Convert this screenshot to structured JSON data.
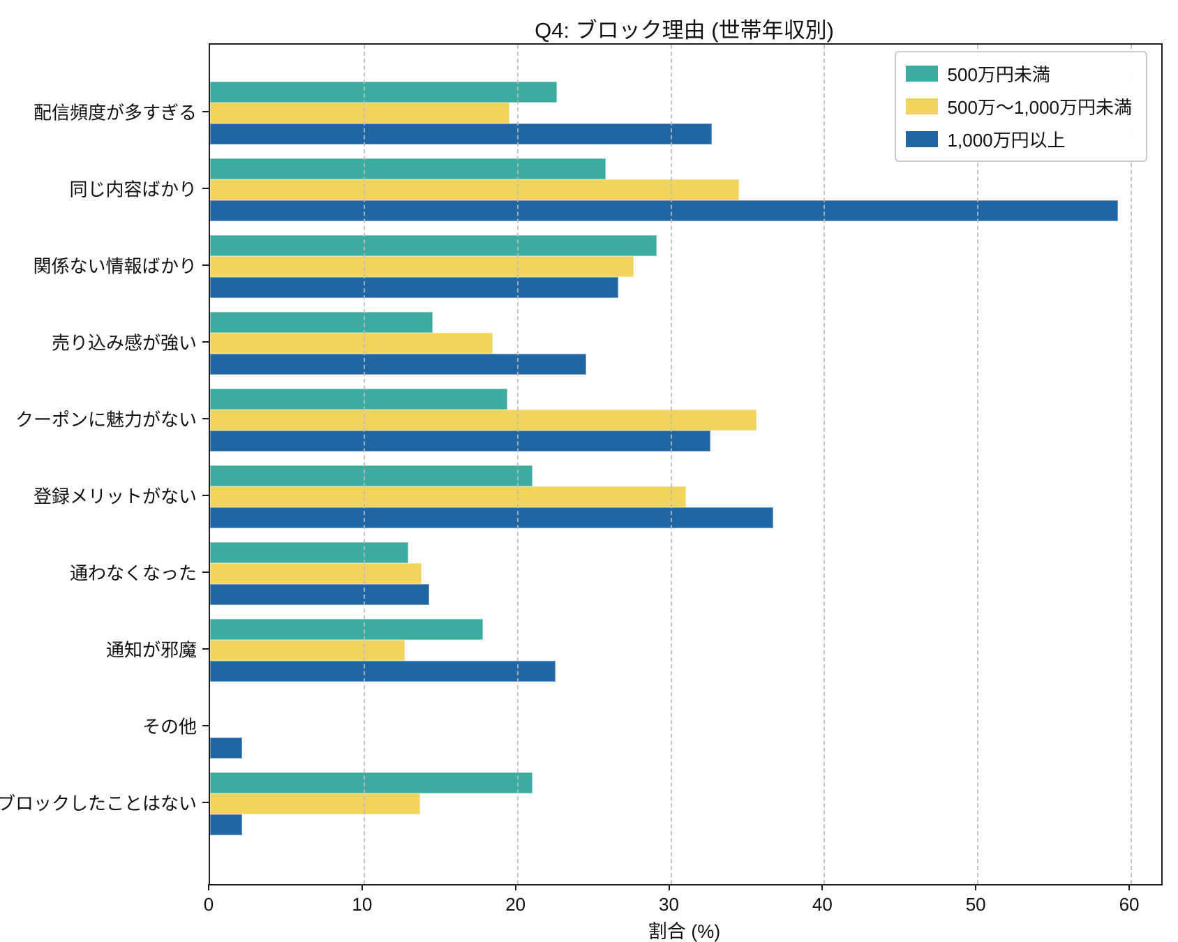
{
  "chart_data": {
    "type": "bar",
    "orientation": "horizontal",
    "title": "Q4: ブロック理由 (世帯年収別)",
    "xlabel": "割合 (%)",
    "xlim": [
      0,
      62
    ],
    "xticks": [
      0,
      10,
      20,
      30,
      40,
      50,
      60
    ],
    "grid": "vertical-dashed",
    "legend_position": "upper-right",
    "categories": [
      "配信頻度が多すぎる",
      "同じ内容ばかり",
      "関係ない情報ばかり",
      "売り込み感が強い",
      "クーポンに魅力がない",
      "登録メリットがない",
      "通わなくなった",
      "通知が邪魔",
      "その他",
      "ブロックしたことはない"
    ],
    "series": [
      {
        "name": "500万円未満",
        "color": "#3CACA0",
        "values": [
          22.6,
          25.8,
          29.1,
          14.5,
          19.4,
          21.0,
          12.9,
          17.8,
          0,
          21.0
        ]
      },
      {
        "name": "500万〜1,000万円未満",
        "color": "#F2D35C",
        "values": [
          19.5,
          34.5,
          27.6,
          18.4,
          35.6,
          31.0,
          13.8,
          12.7,
          0,
          13.7
        ]
      },
      {
        "name": "1,000万円以上",
        "color": "#2066A3",
        "values": [
          32.7,
          59.2,
          26.6,
          24.5,
          32.6,
          36.7,
          14.3,
          22.5,
          2.1,
          2.1
        ]
      }
    ]
  }
}
